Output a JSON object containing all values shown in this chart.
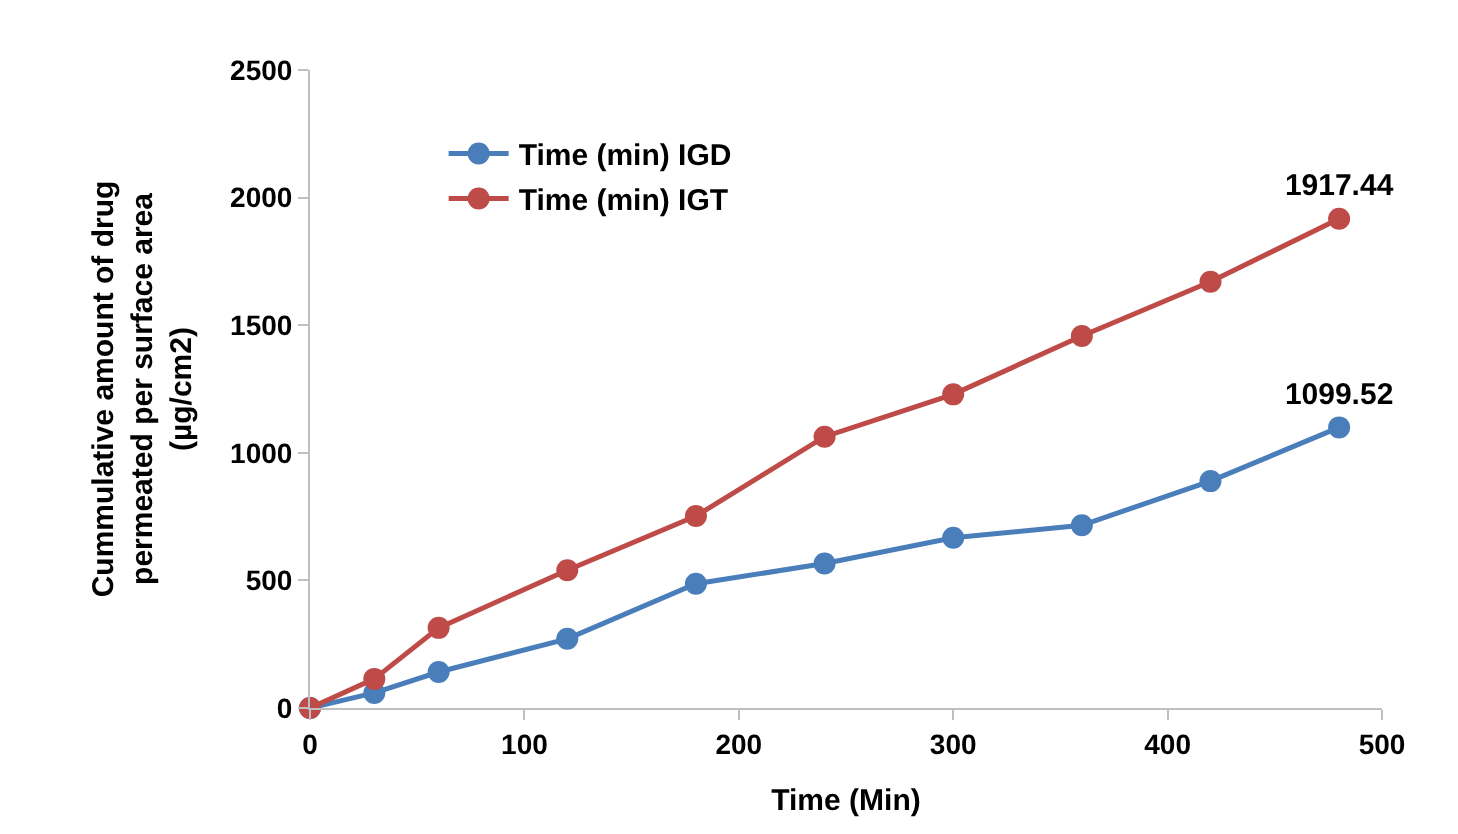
{
  "chart_data": {
    "type": "line",
    "xlabel": "Time (Min)",
    "ylabel": "Cummulative amount of drug\npermeated per surface area\n(µg/cm2)",
    "x": [
      0,
      30,
      60,
      120,
      180,
      240,
      300,
      360,
      420,
      480
    ],
    "series": [
      {
        "name": "Time (min) IGD",
        "color": "#4a7ebb",
        "values": [
          0,
          59,
          141,
          271,
          487,
          566,
          667,
          716,
          889,
          1099.52
        ],
        "value_labels": [
          null,
          null,
          null,
          null,
          null,
          null,
          null,
          null,
          null,
          "1099.52"
        ]
      },
      {
        "name": "Time (min) IGT",
        "color": "#be4b48",
        "values": [
          0,
          114,
          314,
          540,
          752,
          1063,
          1229,
          1458,
          1670,
          1917.44
        ],
        "value_labels": [
          null,
          null,
          null,
          null,
          null,
          null,
          null,
          null,
          null,
          "1917.44"
        ]
      }
    ],
    "xlim": [
      0,
      500
    ],
    "xticks": [
      0,
      100,
      200,
      300,
      400,
      500
    ],
    "ylim": [
      0,
      2500
    ],
    "yticks": [
      0,
      500,
      1000,
      1500,
      2000,
      2500
    ],
    "legend": "top left",
    "marker": "circle",
    "line_style": "solid"
  }
}
